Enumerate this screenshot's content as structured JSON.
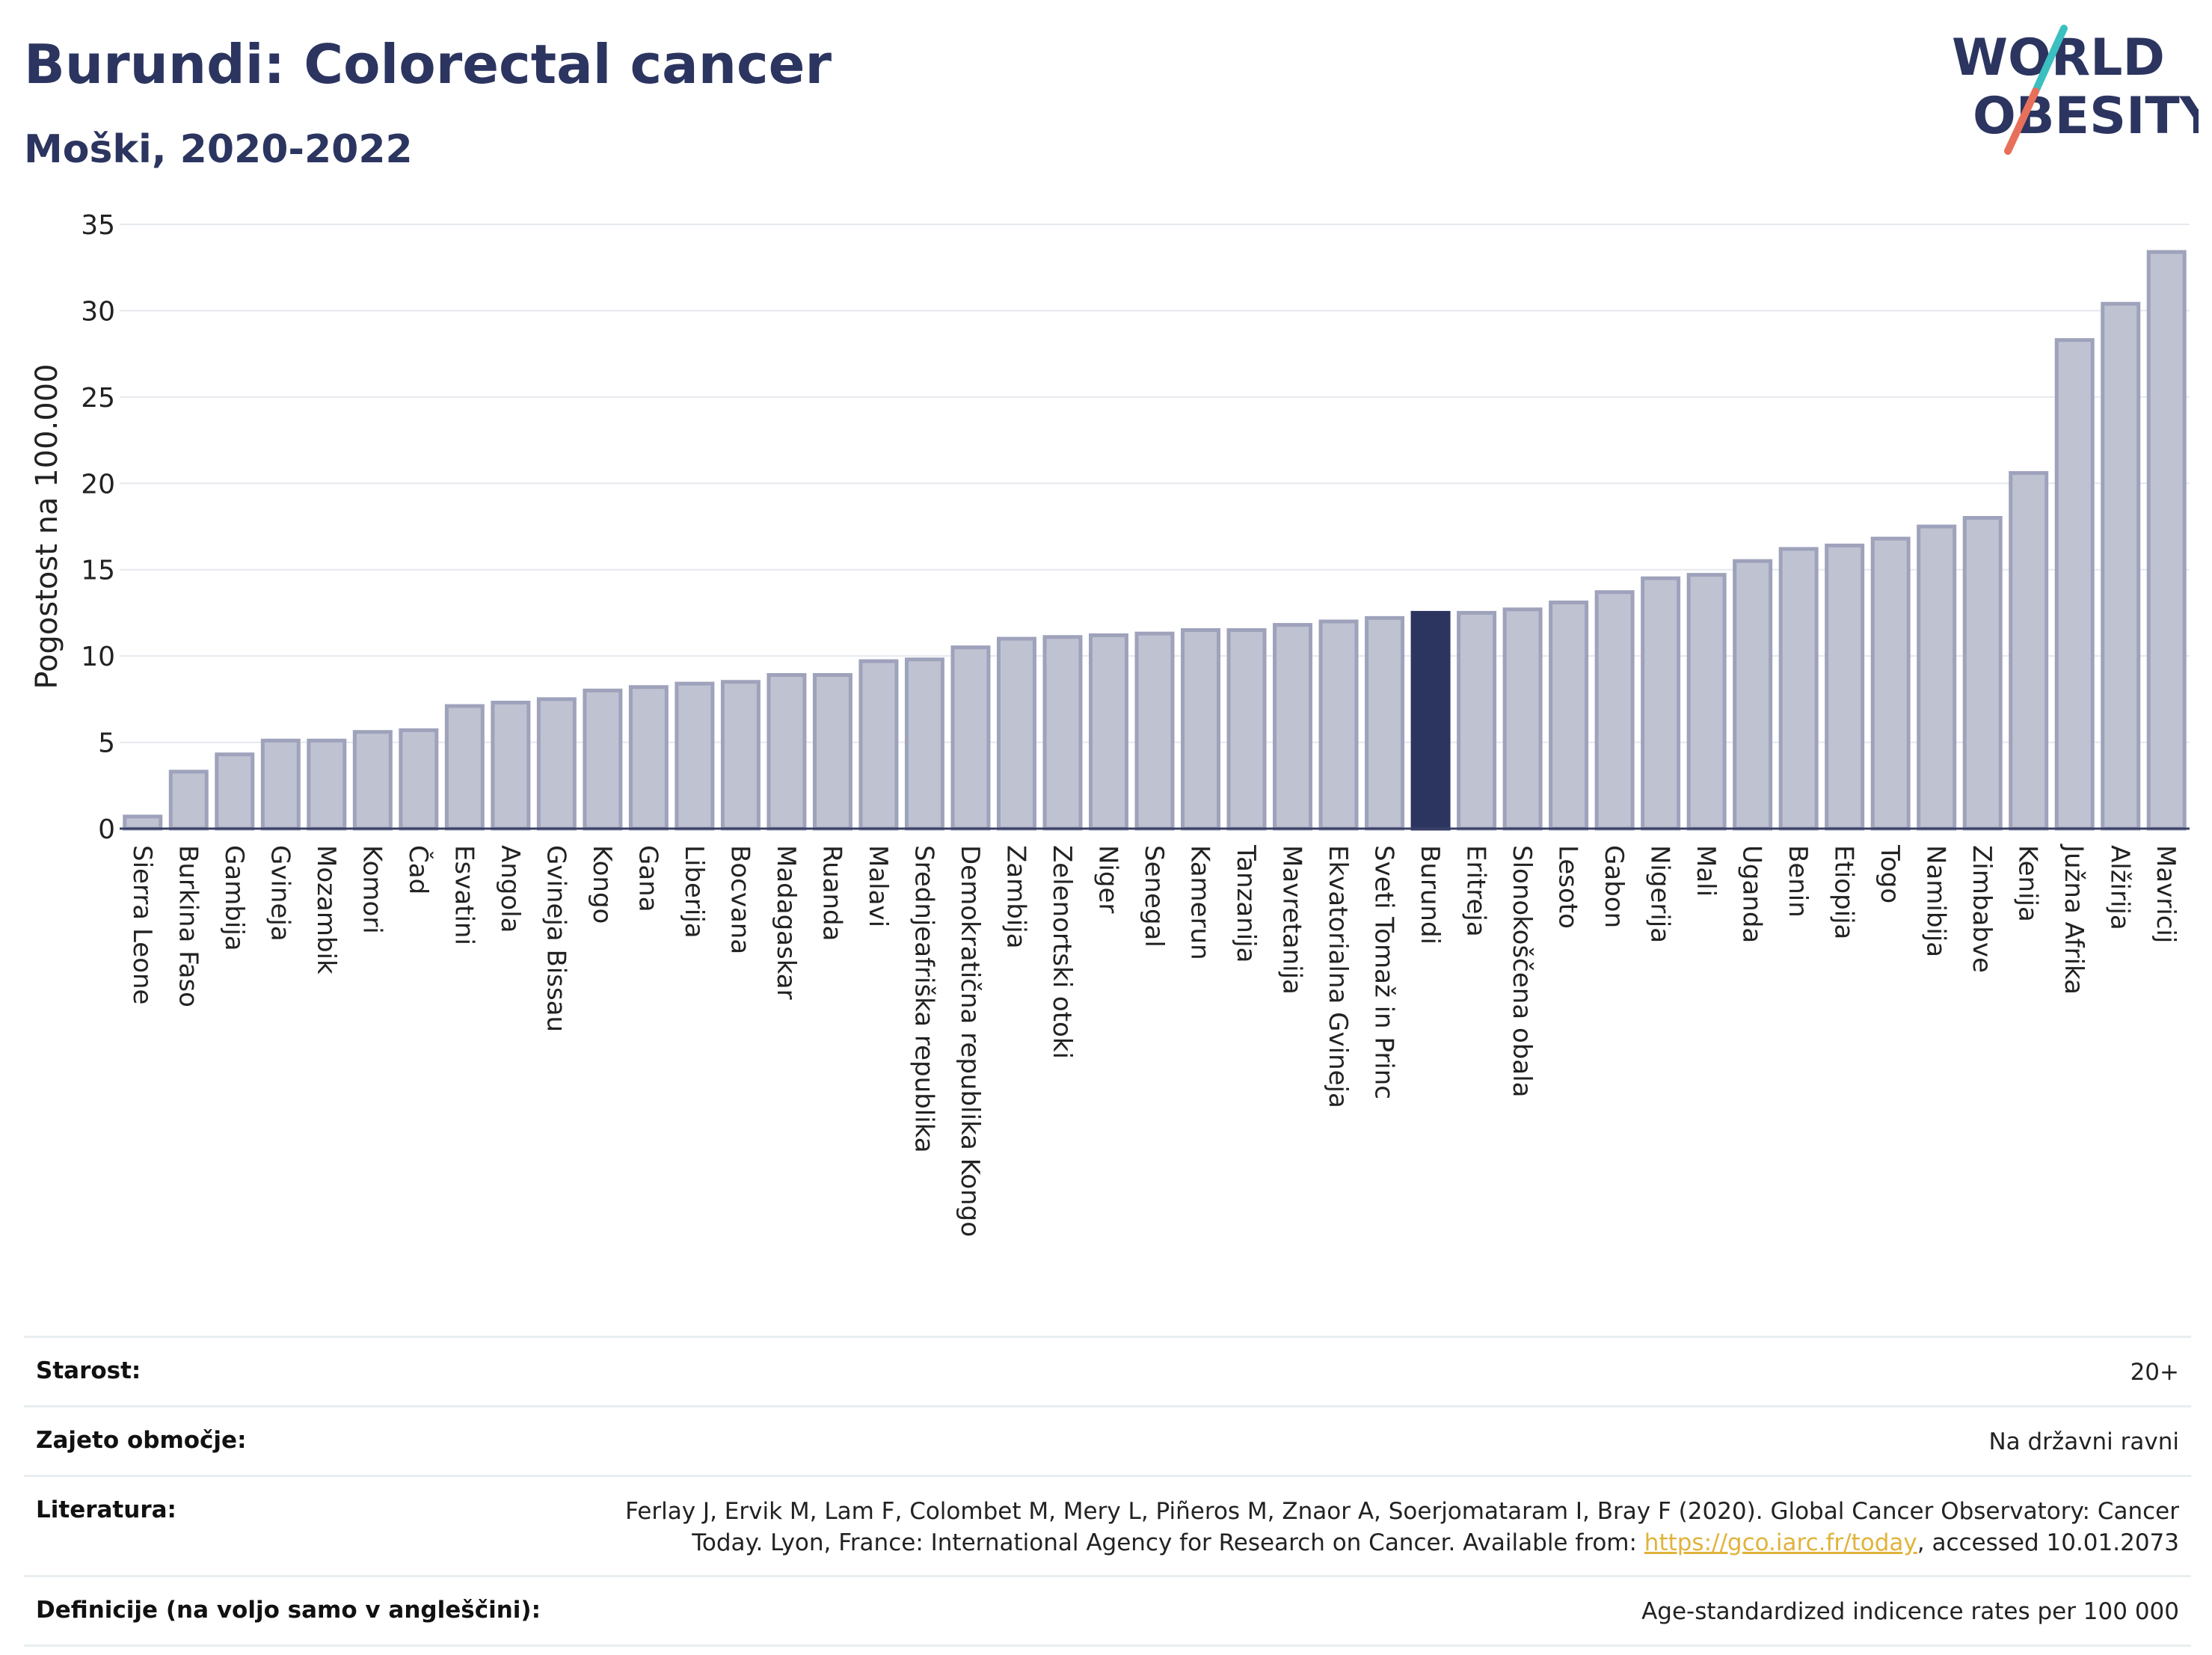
{
  "header": {
    "title": "Burundi: Colorectal cancer",
    "subtitle": "Moški, 2020-2022",
    "logo_line1": "WORLD",
    "logo_line2": "OBESITY"
  },
  "colors": {
    "bar": "#bfc2d1",
    "bar_stroke": "#9ea2bb",
    "highlight": "#2c3560",
    "grid": "#e6e8ee",
    "logo_text": "#2c3560",
    "logo_slash_teal": "#3bbfc1",
    "logo_slash_coral": "#e8705a"
  },
  "chart_data": {
    "type": "bar",
    "ylabel": "Pogostost na 100.000",
    "ylim": [
      0,
      35
    ],
    "yticks": [
      0,
      5,
      10,
      15,
      20,
      25,
      30,
      35
    ],
    "highlight": "Burundi",
    "categories": [
      "Sierra Leone",
      "Burkina Faso",
      "Gambija",
      "Gvineja",
      "Mozambik",
      "Komori",
      "Čad",
      "Esvatini",
      "Angola",
      "Gvineja Bissau",
      "Kongo",
      "Gana",
      "Liberija",
      "Bocvana",
      "Madagaskar",
      "Ruanda",
      "Malavi",
      "Srednjeafriška republika",
      "Demokratična republika Kongo",
      "Zambija",
      "Zelenortski otoki",
      "Niger",
      "Senegal",
      "Kamerun",
      "Tanzanija",
      "Mavretanija",
      "Ekvatorialna Gvineja",
      "Sveti Tomaž in Princ",
      "Burundi",
      "Eritreja",
      "Slonokoščena obala",
      "Lesoto",
      "Gabon",
      "Nigerija",
      "Mali",
      "Uganda",
      "Benin",
      "Etiopija",
      "Togo",
      "Namibija",
      "Zimbabve",
      "Kenija",
      "Južna Afrika",
      "Alžirija",
      "Mavricij"
    ],
    "values": [
      0.7,
      3.3,
      4.3,
      5.1,
      5.1,
      5.6,
      5.7,
      7.1,
      7.3,
      7.5,
      8.0,
      8.2,
      8.4,
      8.5,
      8.9,
      8.9,
      9.7,
      9.8,
      10.5,
      11.0,
      11.1,
      11.2,
      11.3,
      11.5,
      11.5,
      11.8,
      12.0,
      12.2,
      12.5,
      12.5,
      12.7,
      13.1,
      13.7,
      14.5,
      14.7,
      15.5,
      16.2,
      16.4,
      16.8,
      17.5,
      18.0,
      20.6,
      28.3,
      30.4,
      33.4
    ]
  },
  "meta": {
    "rows": [
      {
        "key": "Starost:",
        "value": "20+"
      },
      {
        "key": "Zajeto območje:",
        "value": "Na državni ravni"
      },
      {
        "key": "Literatura:",
        "value_pre": "Ferlay J, Ervik M, Lam F, Colombet M, Mery L, Piñeros M, Znaor A, Soerjomataram I, Bray F (2020). Global Cancer Observatory: Cancer Today. Lyon, France: International Agency for Research on Cancer. Available from: ",
        "link": "https://gco.iarc.fr/today",
        "value_post": ", accessed 10.01.2073"
      },
      {
        "key": "Definicije (na voljo samo v angleščini):",
        "value": "Age-standardized indicence rates per 100 000"
      }
    ]
  }
}
